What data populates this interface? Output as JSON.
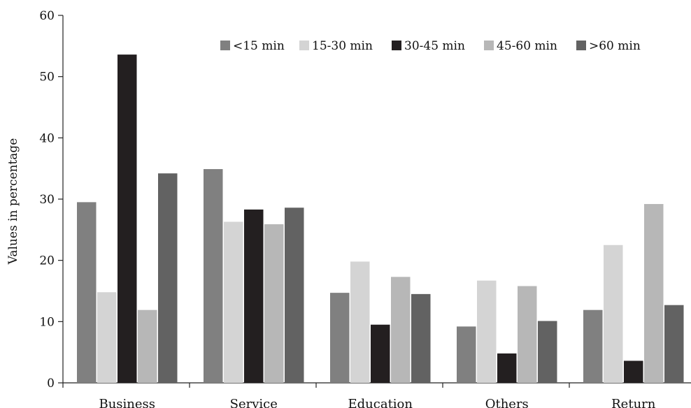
{
  "chart_data": {
    "type": "bar",
    "title": "",
    "xlabel": "",
    "ylabel": "Values in percentage",
    "ylim": [
      0,
      60
    ],
    "yticks": [
      0,
      10,
      20,
      30,
      40,
      50,
      60
    ],
    "grid": false,
    "legend_position": "top-right",
    "categories": [
      "Business",
      "Service",
      "Education",
      "Others",
      "Return"
    ],
    "series": [
      {
        "name": "<15 min",
        "color": "#808080",
        "values": [
          29.5,
          34.9,
          14.7,
          9.2,
          11.9
        ]
      },
      {
        "name": "15-30 min",
        "color": "#d4d4d4",
        "values": [
          14.8,
          26.3,
          19.8,
          16.7,
          22.5
        ]
      },
      {
        "name": "30-45 min",
        "color": "#231f20",
        "values": [
          53.6,
          28.3,
          9.5,
          4.8,
          3.6
        ]
      },
      {
        "name": "45-60 min",
        "color": "#b7b7b7",
        "values": [
          11.9,
          25.9,
          17.3,
          15.8,
          29.2
        ]
      },
      {
        "name": ">60 min",
        "color": "#626262",
        "values": [
          34.2,
          28.6,
          14.5,
          10.1,
          12.7
        ]
      }
    ]
  }
}
